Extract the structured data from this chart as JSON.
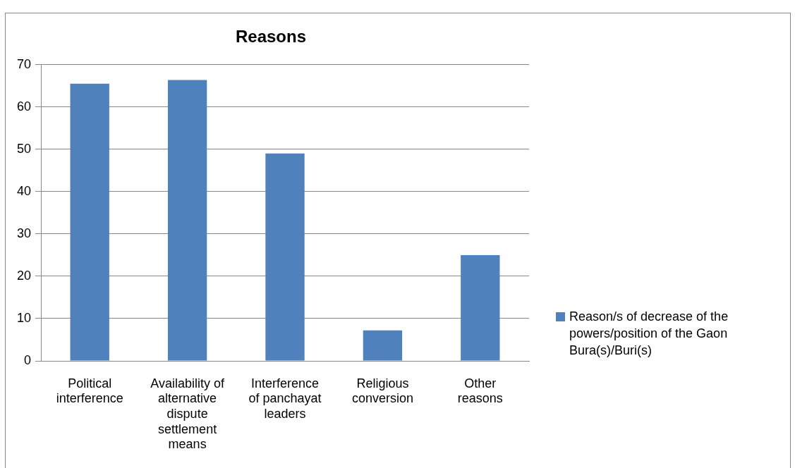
{
  "chart_data": {
    "type": "bar",
    "title": "Reasons",
    "categories": [
      "Political interference",
      "Availability of alternative dispute settlement means",
      "Interference of panchayat leaders",
      "Religious conversion",
      "Other reasons"
    ],
    "series": [
      {
        "name": "Reason/s of decrease of the powers/position of the Gaon Bura(s)/Buri(s)",
        "color": "#4f81bd",
        "values": [
          65.5,
          66.4,
          49,
          7.2,
          25
        ]
      }
    ],
    "ylim": [
      0,
      70
    ],
    "yticks": [
      0,
      10,
      20,
      30,
      40,
      50,
      60,
      70
    ],
    "grid": "y",
    "legend": "right"
  }
}
